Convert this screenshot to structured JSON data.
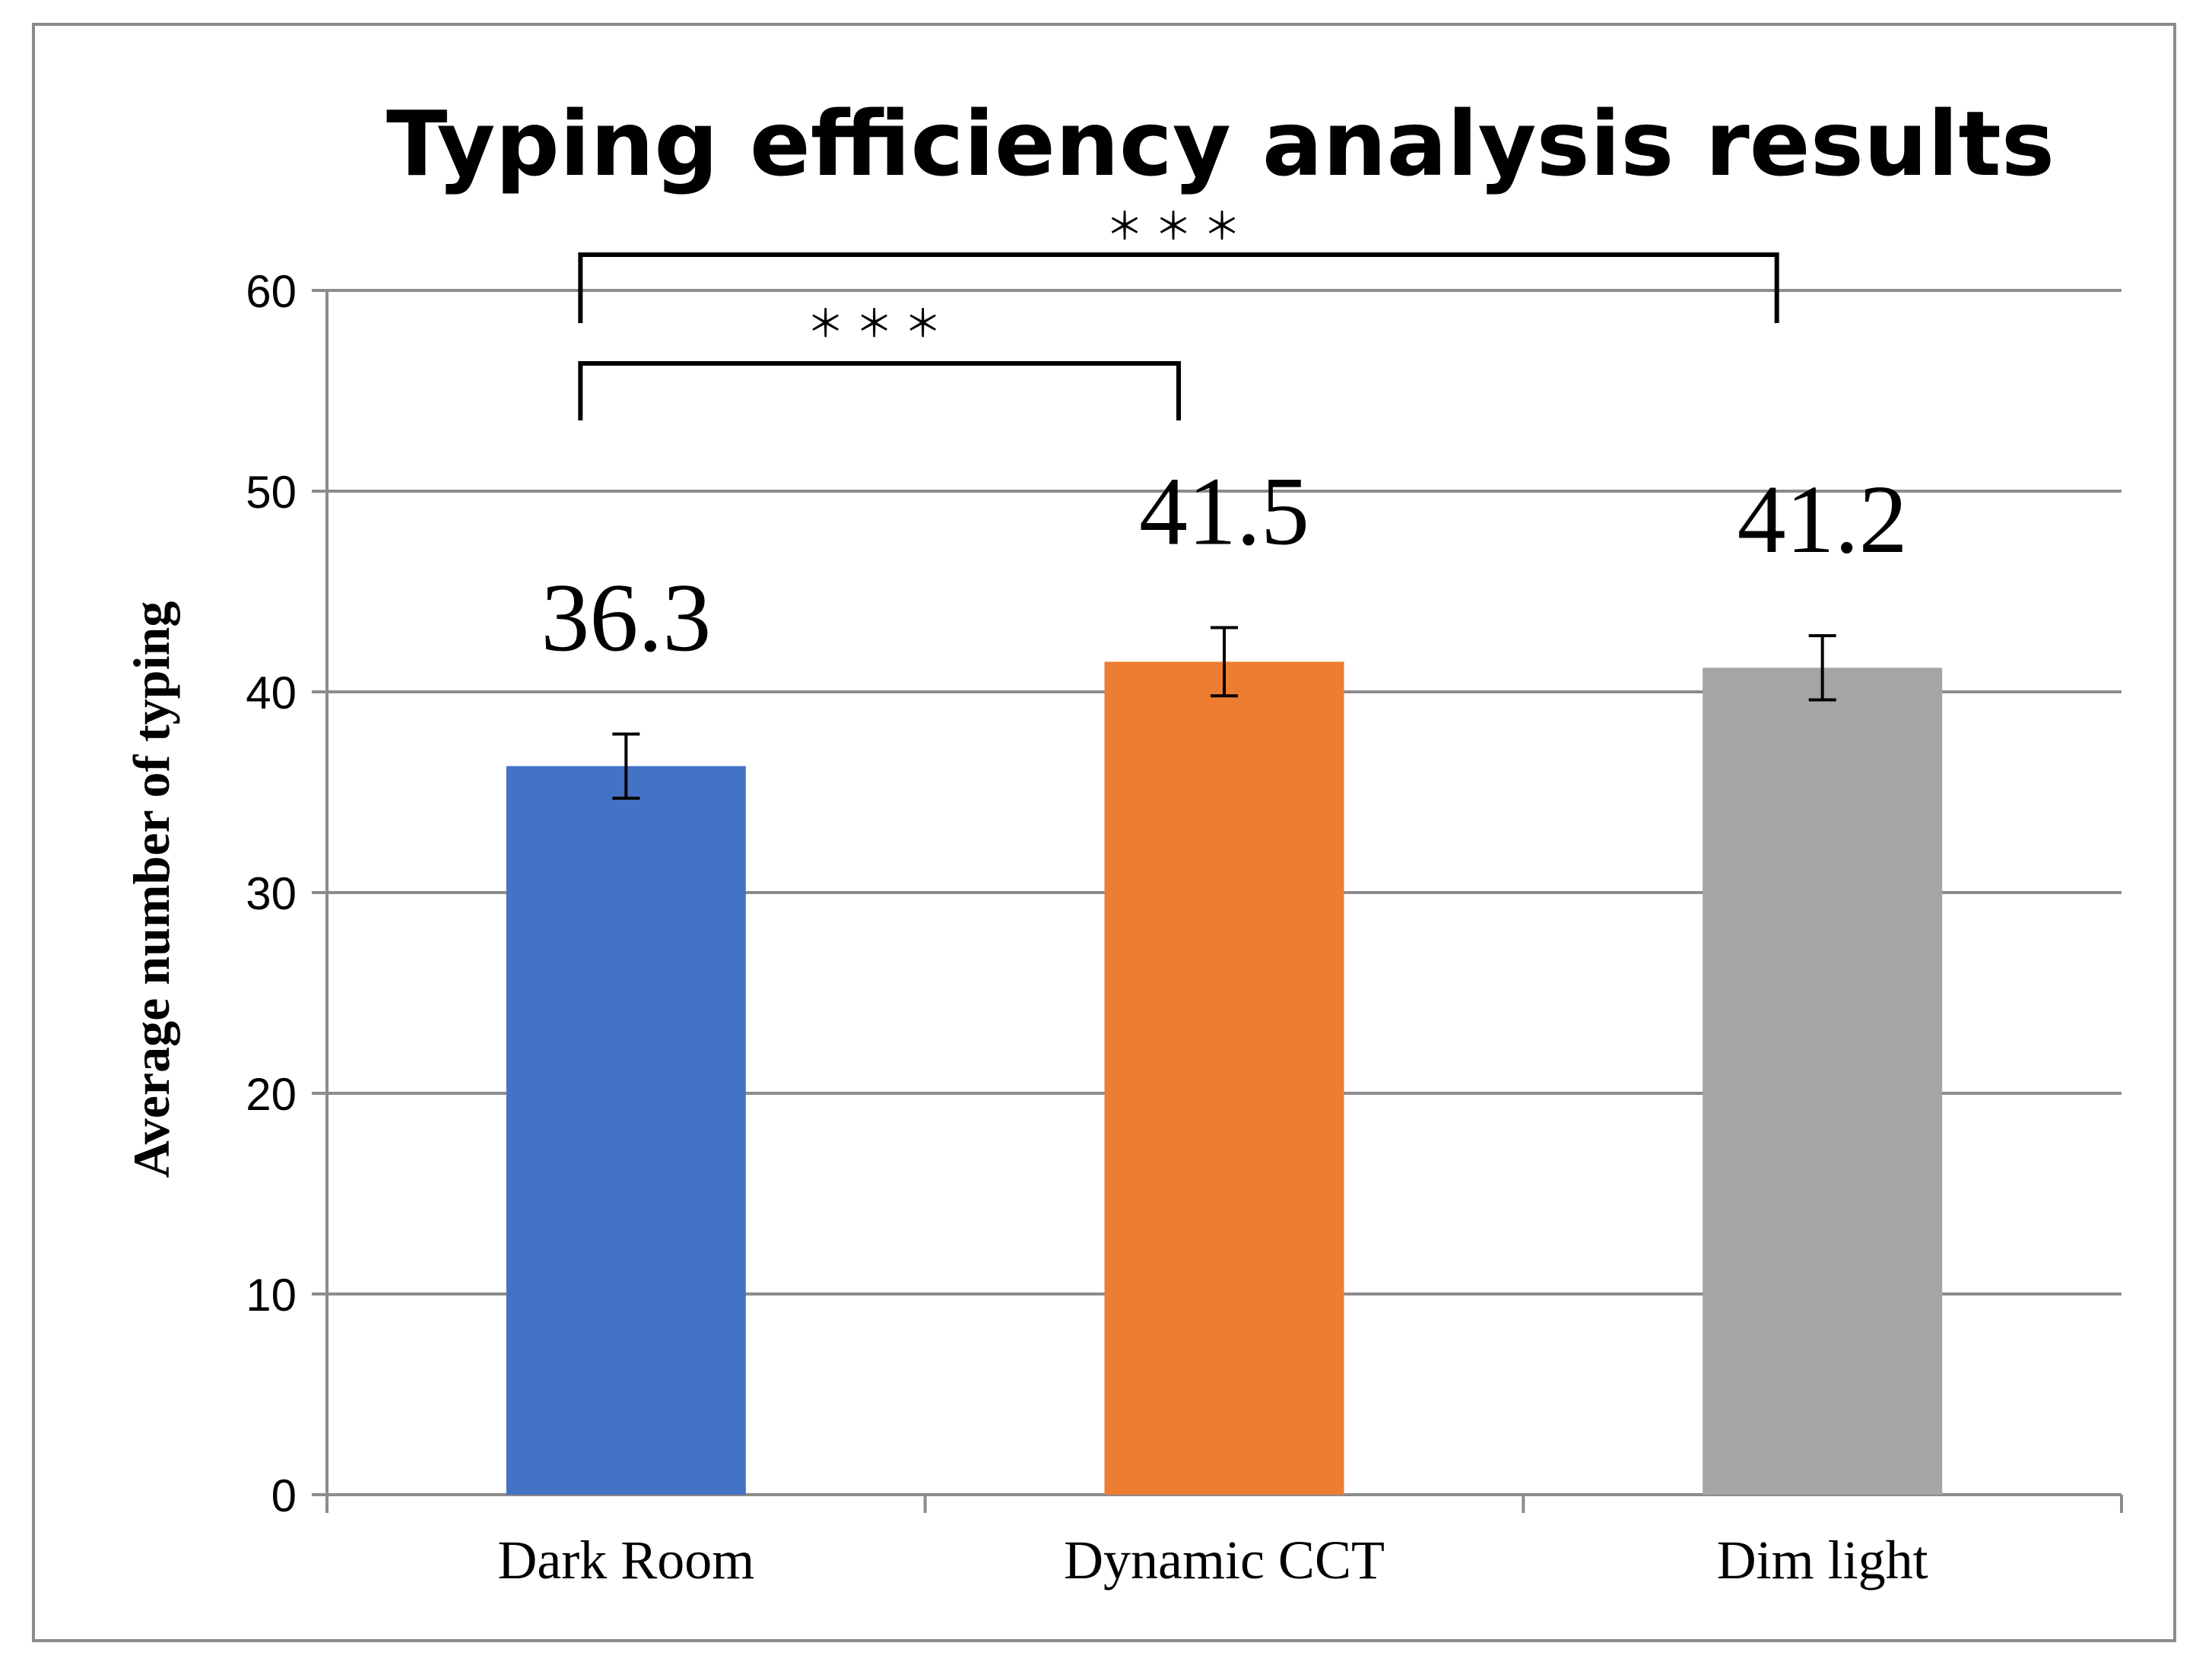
{
  "chart_data": {
    "type": "bar",
    "title": "Typing efficiency analysis results",
    "xlabel": "",
    "ylabel": "Average number of typing",
    "ylim": [
      0,
      60
    ],
    "yticks": [
      0,
      10,
      20,
      30,
      40,
      50,
      60
    ],
    "grid": true,
    "categories": [
      "Dark Room",
      "Dynamic CCT",
      "Dim light"
    ],
    "values": [
      36.3,
      41.5,
      41.2
    ],
    "value_labels": [
      "36.3",
      "41.5",
      "41.2"
    ],
    "error_bars": [
      1.6,
      1.7,
      1.6
    ],
    "colors": [
      "#4472c4",
      "#ed7d31",
      "#a5a5a5"
    ],
    "significance": [
      {
        "from": "Dark Room",
        "to": "Dynamic CCT",
        "label": "＊＊＊"
      },
      {
        "from": "Dark Room",
        "to": "Dim light",
        "label": "＊＊＊"
      }
    ]
  }
}
